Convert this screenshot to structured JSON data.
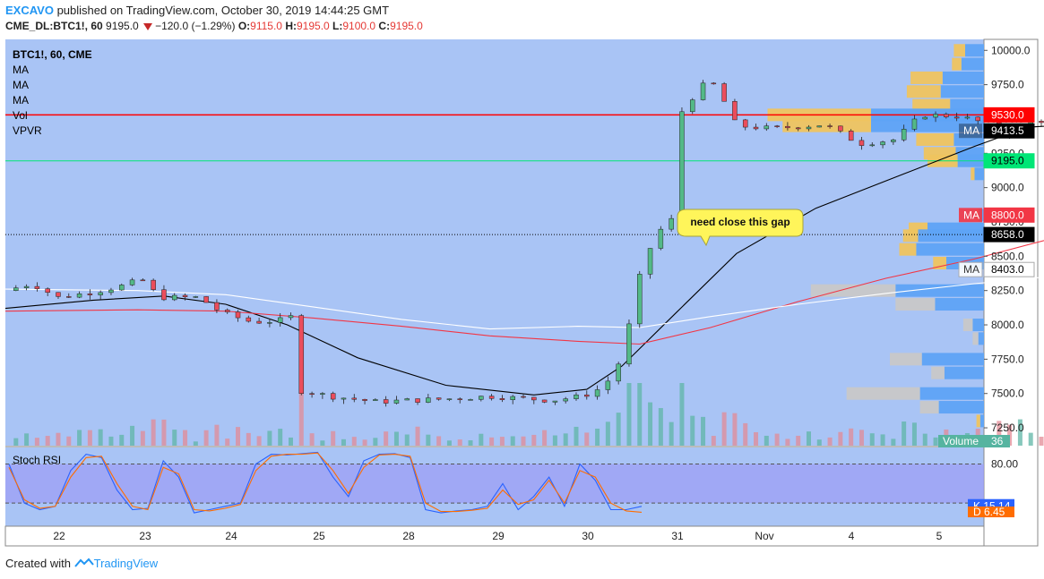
{
  "header": {
    "publisher": "EXCAVO",
    "published_text": "published on TradingView.com, October 30, 2019 14:44:25 GMT",
    "symbol_line": "CME_DL:BTC1!, 60",
    "last_price": "9195.0",
    "change": "−120.0 (−1.29%)",
    "o_label": "O:",
    "o_val": "9115.0",
    "h_label": "H:",
    "h_val": "9195.0",
    "l_label": "L:",
    "l_val": "9100.0",
    "c_label": "C:",
    "c_val": "9195.0"
  },
  "legend": {
    "symbol": "BTC1!, 60, CME",
    "items": [
      "MA",
      "MA",
      "MA",
      "Vol",
      "VPVR"
    ]
  },
  "annotation": "need close this gap",
  "footer": {
    "created_with": "Created with",
    "brand": "TradingView"
  },
  "colors": {
    "background": "#a9c4f5",
    "up_candle": "#53b987",
    "down_candle": "#eb4d5c",
    "resistance_line": "#ff0000",
    "green_line": "#00e676",
    "ma_black": "#000000",
    "ma_red": "#f23645",
    "ma_white": "#ffffff",
    "vpvr_blue": "#5ea3f5",
    "vpvr_yellow": "#efc45f",
    "rsi_band": "#9c9cf5",
    "k_line": "#2962ff",
    "d_line": "#ff6d00"
  },
  "chart_data": [
    {
      "type": "candlestick",
      "title": "BTC1!, 60, CME",
      "x_ticks": [
        "22",
        "23",
        "24",
        "25",
        "28",
        "29",
        "30",
        "31",
        "Nov",
        "4",
        "5"
      ],
      "y_ticks": [
        "7250.0",
        "7500.0",
        "7750.0",
        "8000.0",
        "8250.0",
        "8500.0",
        "8750.0",
        "9000.0",
        "9250.0",
        "9500.0",
        "9750.0",
        "10000.0"
      ],
      "ylim": [
        7120,
        10080
      ],
      "price_tags": [
        {
          "label": "",
          "value": "9530.0",
          "color": "#ff0000"
        },
        {
          "label": "MA",
          "value": "9413.5",
          "color": "#000000"
        },
        {
          "label": "",
          "value": "9195.0",
          "color": "#00e676"
        },
        {
          "label": "MA",
          "value": "8800.0",
          "color": "#f23645"
        },
        {
          "label": "",
          "value": "8658.0",
          "color": "#000000"
        },
        {
          "label": "MA",
          "value": "8403.0",
          "color": "#ffffff"
        }
      ],
      "horizontal_lines": [
        {
          "price": 9530,
          "style": "solid",
          "color": "#ff0000"
        },
        {
          "price": 9195,
          "style": "solid",
          "color": "#00e676"
        },
        {
          "price": 8658,
          "style": "dotted",
          "color": "#000000"
        }
      ],
      "ohlc_path": [
        {
          "t": 0,
          "p": 8250
        },
        {
          "t": 0.3,
          "p": 8300
        },
        {
          "t": 0.6,
          "p": 8200
        },
        {
          "t": 1.0,
          "p": 8240
        },
        {
          "t": 1.3,
          "p": 8280
        },
        {
          "t": 1.55,
          "p": 8330
        },
        {
          "t": 1.75,
          "p": 8200
        },
        {
          "t": 2.2,
          "p": 8200
        },
        {
          "t": 2.45,
          "p": 8090
        },
        {
          "t": 2.8,
          "p": 8020
        },
        {
          "t": 3.1,
          "p": 8030
        },
        {
          "t": 3.25,
          "p": 8060
        },
        {
          "t": 3.35,
          "p": 7520
        },
        {
          "t": 3.7,
          "p": 7480
        },
        {
          "t": 4.2,
          "p": 7440
        },
        {
          "t": 5.0,
          "p": 7460
        },
        {
          "t": 5.5,
          "p": 7480
        },
        {
          "t": 6.2,
          "p": 7450
        },
        {
          "t": 6.55,
          "p": 7480
        },
        {
          "t": 6.8,
          "p": 7550
        },
        {
          "t": 7.0,
          "p": 7760
        },
        {
          "t": 7.2,
          "p": 8350
        },
        {
          "t": 7.4,
          "p": 8700
        },
        {
          "t": 7.55,
          "p": 8680
        },
        {
          "t": 7.65,
          "p": 9530
        },
        {
          "t": 7.85,
          "p": 9700
        },
        {
          "t": 8.0,
          "p": 9790
        },
        {
          "t": 8.15,
          "p": 9640
        },
        {
          "t": 8.3,
          "p": 9450
        },
        {
          "t": 8.7,
          "p": 9430
        },
        {
          "t": 9.3,
          "p": 9460
        },
        {
          "t": 9.7,
          "p": 9320
        },
        {
          "t": 10.1,
          "p": 9350
        },
        {
          "t": 10.4,
          "p": 9530
        },
        {
          "t": 10.8,
          "p": 9520
        },
        {
          "t": 11.2,
          "p": 9460
        },
        {
          "t": 11.4,
          "p": 9400
        },
        {
          "t": 11.7,
          "p": 9500
        },
        {
          "t": 12.0,
          "p": 9440
        },
        {
          "t": 12.3,
          "p": 9300
        },
        {
          "t": 12.6,
          "p": 9230
        },
        {
          "t": 12.85,
          "p": 9120
        },
        {
          "t": 13.1,
          "p": 9195
        }
      ],
      "moving_averages": [
        {
          "color": "#000000",
          "points": [
            [
              0,
              8120
            ],
            [
              1,
              8180
            ],
            [
              1.8,
              8210
            ],
            [
              2.5,
              8150
            ],
            [
              3.2,
              8000
            ],
            [
              4,
              7760
            ],
            [
              5,
              7560
            ],
            [
              6,
              7490
            ],
            [
              6.6,
              7530
            ],
            [
              7.0,
              7700
            ],
            [
              7.6,
              8080
            ],
            [
              8.3,
              8520
            ],
            [
              9.2,
              8850
            ],
            [
              10.2,
              9100
            ],
            [
              11,
              9300
            ],
            [
              11.6,
              9440
            ],
            [
              12.1,
              9460
            ],
            [
              12.6,
              9420
            ],
            [
              13.1,
              9413
            ]
          ]
        },
        {
          "color": "#f23645",
          "points": [
            [
              0,
              8100
            ],
            [
              1.5,
              8110
            ],
            [
              2.5,
              8100
            ],
            [
              3.5,
              8050
            ],
            [
              4.5,
              7990
            ],
            [
              5.5,
              7920
            ],
            [
              6.5,
              7880
            ],
            [
              7.2,
              7860
            ],
            [
              8,
              7980
            ],
            [
              9,
              8170
            ],
            [
              10,
              8340
            ],
            [
              11,
              8480
            ],
            [
              12,
              8650
            ],
            [
              13.1,
              8800
            ]
          ]
        },
        {
          "color": "#ffffff",
          "points": [
            [
              0,
              8260
            ],
            [
              1.5,
              8250
            ],
            [
              2.5,
              8220
            ],
            [
              3.5,
              8130
            ],
            [
              4.5,
              8040
            ],
            [
              5.5,
              7970
            ],
            [
              6.5,
              7990
            ],
            [
              7.2,
              7980
            ],
            [
              8,
              8060
            ],
            [
              9,
              8150
            ],
            [
              10,
              8230
            ],
            [
              11,
              8300
            ],
            [
              12,
              8360
            ],
            [
              13.1,
              8403
            ]
          ]
        }
      ]
    },
    {
      "type": "bar",
      "title": "Volume",
      "value_label": "36"
    },
    {
      "type": "line",
      "title": "Stoch RSI",
      "y_ticks": [
        "80.00"
      ],
      "ylim": [
        -10,
        100
      ],
      "band": [
        20,
        80
      ],
      "k_value": "15.14",
      "d_value": "6.45",
      "k_label": "K",
      "d_label": "D",
      "series": [
        {
          "name": "K",
          "values": [
            80,
            20,
            10,
            15,
            70,
            95,
            90,
            40,
            10,
            12,
            85,
            60,
            5,
            10,
            15,
            20,
            80,
            95,
            94,
            96,
            98,
            60,
            30,
            85,
            95,
            96,
            90,
            10,
            5,
            8,
            10,
            15,
            50,
            10,
            30,
            60,
            15,
            80,
            55,
            10,
            10,
            15
          ]
        },
        {
          "name": "D",
          "values": [
            75,
            25,
            12,
            15,
            60,
            90,
            92,
            50,
            15,
            10,
            75,
            65,
            10,
            8,
            12,
            18,
            70,
            92,
            95,
            95,
            97,
            70,
            35,
            75,
            94,
            95,
            92,
            20,
            7,
            7,
            9,
            12,
            40,
            18,
            25,
            55,
            20,
            70,
            60,
            20,
            8,
            6
          ]
        }
      ]
    },
    {
      "type": "bar",
      "title": "VPVR",
      "price_levels": [
        10000,
        9900,
        9800,
        9700,
        9600,
        9530,
        9450,
        9350,
        9250,
        9195,
        9100,
        8800,
        8700,
        8650,
        8550,
        8450,
        8250,
        8150,
        8000,
        7900,
        7750,
        7650,
        7500,
        7400,
        7300
      ],
      "up_volume": [
        0.1,
        0.12,
        0.22,
        0.23,
        0.18,
        0.6,
        0.6,
        0.16,
        0.15,
        0.14,
        0.05,
        0.03,
        0.3,
        0.35,
        0.36,
        0.2,
        0.47,
        0.26,
        0.06,
        0.03,
        0.33,
        0.21,
        0.34,
        0.24,
        0.02
      ],
      "down_volume": [
        0.06,
        0.05,
        0.17,
        0.18,
        0.2,
        0.55,
        0.47,
        0.2,
        0.17,
        0.16,
        0.02,
        0.01,
        0.1,
        0.08,
        0.09,
        0.07,
        0.45,
        0.21,
        0.05,
        0.03,
        0.17,
        0.07,
        0.39,
        0.1,
        0.02
      ]
    }
  ]
}
